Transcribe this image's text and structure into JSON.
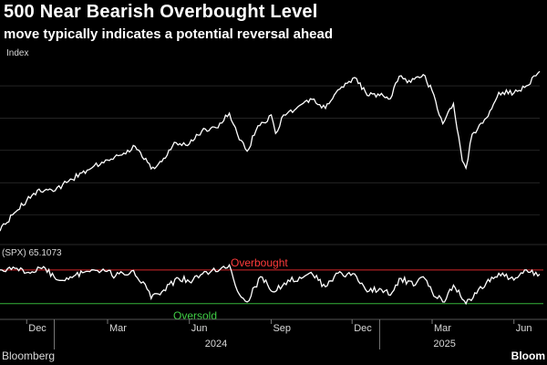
{
  "header": {
    "title": "500 Near Bearish Overbought Level",
    "subtitle": "move typically indicates a potential reversal ahead"
  },
  "footer": {
    "source": "Bloomberg",
    "logo": "Bloom"
  },
  "colors": {
    "background": "#000000",
    "price_line": "#ffffff",
    "rsi_line": "#ffffff",
    "overbought": "#d7262b",
    "oversold": "#35b33a",
    "grid": "#3a3a3a"
  },
  "chart_data": [
    {
      "type": "line",
      "panel": "price",
      "ylabel": "Index",
      "grid": true,
      "x_start": "2023-11-01",
      "x_end": "2025-06-30",
      "ylim": [
        4100,
        6250
      ],
      "series": [
        {
          "x": [
            "2023-11-01",
            "2023-11-15",
            "2023-12-01",
            "2023-12-15",
            "2024-01-02",
            "2024-01-15",
            "2024-02-01",
            "2024-02-15",
            "2024-03-01",
            "2024-03-15",
            "2024-04-01",
            "2024-04-15",
            "2024-04-19",
            "2024-05-01",
            "2024-05-15",
            "2024-06-01",
            "2024-06-15",
            "2024-07-01",
            "2024-07-16",
            "2024-07-25",
            "2024-08-05",
            "2024-08-15",
            "2024-09-01",
            "2024-09-06",
            "2024-09-15",
            "2024-10-01",
            "2024-10-15",
            "2024-11-01",
            "2024-11-15",
            "2024-12-06",
            "2024-12-18",
            "2025-01-01",
            "2025-01-13",
            "2025-01-23",
            "2025-02-01",
            "2025-02-19",
            "2025-03-01",
            "2025-03-13",
            "2025-03-25",
            "2025-04-04",
            "2025-04-08",
            "2025-04-15",
            "2025-05-01",
            "2025-05-15",
            "2025-06-01",
            "2025-06-15",
            "2025-06-30"
          ],
          "values": [
            4200,
            4400,
            4580,
            4720,
            4700,
            4800,
            4920,
            5010,
            5080,
            5140,
            5250,
            5050,
            4970,
            5060,
            5300,
            5280,
            5440,
            5480,
            5660,
            5400,
            5190,
            5450,
            5640,
            5410,
            5640,
            5740,
            5840,
            5720,
            5950,
            6090,
            5880,
            5880,
            5840,
            6120,
            6040,
            6140,
            5940,
            5530,
            5780,
            5070,
            4980,
            5400,
            5600,
            5920,
            5910,
            6000,
            6180
          ]
        }
      ]
    },
    {
      "type": "line",
      "panel": "rsi",
      "ylim": [
        20,
        85
      ],
      "series": [
        {
          "name": "(SPX) 65.1073",
          "x": [
            "2023-11-01",
            "2023-11-20",
            "2023-12-05",
            "2023-12-20",
            "2024-01-05",
            "2024-01-25",
            "2024-02-10",
            "2024-02-25",
            "2024-03-10",
            "2024-03-28",
            "2024-04-10",
            "2024-04-19",
            "2024-05-01",
            "2024-05-20",
            "2024-06-05",
            "2024-06-20",
            "2024-07-05",
            "2024-07-16",
            "2024-07-25",
            "2024-08-05",
            "2024-08-20",
            "2024-09-05",
            "2024-09-20",
            "2024-10-05",
            "2024-10-18",
            "2024-11-01",
            "2024-11-15",
            "2024-12-06",
            "2024-12-18",
            "2025-01-01",
            "2025-01-13",
            "2025-01-25",
            "2025-02-10",
            "2025-02-19",
            "2025-03-01",
            "2025-03-13",
            "2025-03-25",
            "2025-04-08",
            "2025-04-20",
            "2025-05-01",
            "2025-05-15",
            "2025-06-01",
            "2025-06-15",
            "2025-06-30"
          ],
          "values": [
            70,
            72,
            66,
            74,
            58,
            64,
            68,
            71,
            63,
            69,
            56,
            36,
            44,
            60,
            58,
            68,
            70,
            76,
            45,
            32,
            62,
            44,
            58,
            60,
            64,
            50,
            66,
            62,
            44,
            48,
            40,
            60,
            52,
            62,
            44,
            32,
            52,
            30,
            42,
            55,
            66,
            58,
            70,
            65
          ]
        }
      ],
      "annotations": [
        {
          "label": "Overbought",
          "y": 70
        },
        {
          "label": "Oversold",
          "y": 30
        }
      ]
    }
  ],
  "x_axis": {
    "month_labels": [
      {
        "label": "Dec",
        "date": "2023-12-01"
      },
      {
        "label": "Mar",
        "date": "2024-03-01"
      },
      {
        "label": "Jun",
        "date": "2024-06-01"
      },
      {
        "label": "Sep",
        "date": "2024-09-01"
      },
      {
        "label": "Dec",
        "date": "2024-12-01"
      },
      {
        "label": "Mar",
        "date": "2025-03-01"
      },
      {
        "label": "Jun",
        "date": "2025-06-01"
      }
    ],
    "year_labels": [
      {
        "label": "2024",
        "date": "2024-07-01"
      },
      {
        "label": "2025",
        "date": "2025-03-15"
      }
    ],
    "year_separators": [
      "2024-01-01",
      "2025-01-01"
    ]
  }
}
